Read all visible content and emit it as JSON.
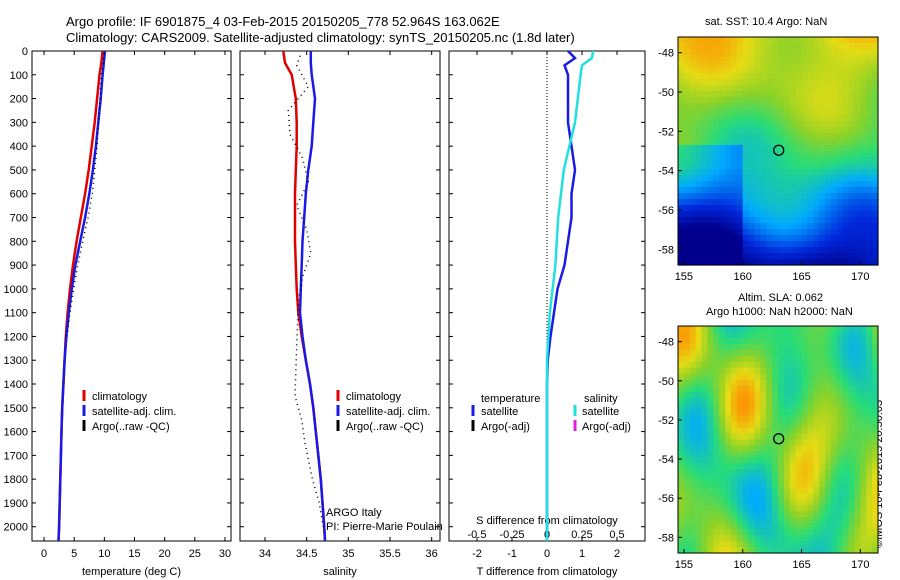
{
  "header": {
    "line1": "Argo profile: IF 6901875_4 03-Feb-2015 20150205_778 52.964S 163.062E",
    "line2": "Climatology: CARS2009. Satellite-adjusted climatology: synTS_20150205.nc (1.8d later)"
  },
  "map_sst": {
    "title": "sat. SST: 10.4 Argo: NaN"
  },
  "map_sla": {
    "title1": "Altim. SLA: 0.062",
    "title2": "Argo h1000: NaN h2000: NaN"
  },
  "stamp": "©IMOS 10-Feb-2015 20:50:03",
  "colors": {
    "climatology": "#e00000",
    "satellite": "#1a1ae6",
    "argo": "#000000",
    "sal_satellite": "#20e0e0",
    "sal_argo": "#e020e0"
  },
  "chart_data": [
    {
      "type": "line",
      "panel": "temperature",
      "xlabel": "temperature (deg C)",
      "xlim": [
        -2,
        31
      ],
      "xticks": [
        "0",
        "5",
        "10",
        "15",
        "20",
        "25",
        "30"
      ],
      "ylim": [
        2060,
        0
      ],
      "yticks": [
        "0",
        "100",
        "200",
        "300",
        "400",
        "500",
        "600",
        "700",
        "800",
        "900",
        "1000",
        "1100",
        "1200",
        "1300",
        "1400",
        "1500",
        "1600",
        "1700",
        "1800",
        "1900",
        "2000"
      ],
      "legend": {
        "items": [
          "climatology",
          "satellite-adj. clim.",
          "Argo(..raw -QC)"
        ]
      },
      "series": [
        {
          "name": "climatology",
          "style": "solid",
          "color": "#e00000",
          "depth": [
            0,
            50,
            100,
            200,
            300,
            400,
            500,
            600,
            700,
            800,
            900,
            1000,
            1100,
            1200,
            1300,
            1400,
            1500,
            1600,
            1700,
            1800,
            1900,
            2000,
            2060
          ],
          "values": [
            9.7,
            9.5,
            9.2,
            8.8,
            8.4,
            7.9,
            7.4,
            6.8,
            6.1,
            5.4,
            4.8,
            4.3,
            3.9,
            3.6,
            3.4,
            3.2,
            3.0,
            2.9,
            2.8,
            2.7,
            2.6,
            2.5,
            2.4
          ]
        },
        {
          "name": "satellite-adj. clim.",
          "style": "solid",
          "color": "#1a1ae6",
          "depth": [
            0,
            50,
            100,
            200,
            300,
            400,
            500,
            600,
            700,
            800,
            900,
            1000,
            1100,
            1200,
            1300,
            1400,
            1500,
            1600,
            1700,
            1800,
            1900,
            2000,
            2060
          ],
          "values": [
            10.1,
            9.9,
            9.7,
            9.4,
            9.0,
            8.6,
            8.1,
            7.5,
            6.8,
            6.0,
            5.2,
            4.6,
            4.1,
            3.7,
            3.4,
            3.2,
            3.0,
            2.9,
            2.8,
            2.7,
            2.6,
            2.5,
            2.4
          ]
        },
        {
          "name": "Argo(..raw -QC)",
          "style": "dotted",
          "color": "#000000",
          "depth": [
            10,
            50,
            100,
            200,
            300,
            400,
            500,
            600,
            700,
            800,
            900,
            1000,
            1100,
            1200
          ],
          "values": [
            10.0,
            9.8,
            9.5,
            9.3,
            9.0,
            8.8,
            8.4,
            8.0,
            7.3,
            6.4,
            5.6,
            4.9,
            4.3,
            3.8
          ]
        }
      ]
    },
    {
      "type": "line",
      "panel": "salinity",
      "xlabel": "salinity",
      "xlim": [
        33.7,
        36.1
      ],
      "xticks": [
        "34",
        "34.5",
        "35",
        "35.5",
        "36"
      ],
      "ylim": [
        2060,
        0
      ],
      "legend": {
        "items": [
          "climatology",
          "satellite-adj. clim.",
          "Argo(..raw -QC)"
        ]
      },
      "annotations": [
        "ARGO Italy",
        "PI: Pierre-Marie Poulain"
      ],
      "series": [
        {
          "name": "climatology",
          "style": "solid",
          "color": "#e00000",
          "depth": [
            0,
            50,
            100,
            200,
            300,
            400,
            500,
            600,
            700,
            800,
            900,
            1000,
            1100,
            1200,
            1300,
            1400,
            1500,
            1600,
            1700,
            1800,
            1900,
            2000,
            2060
          ],
          "values": [
            34.22,
            34.24,
            34.32,
            34.37,
            34.38,
            34.38,
            34.37,
            34.36,
            34.36,
            34.36,
            34.37,
            34.38,
            34.4,
            34.44,
            34.49,
            34.54,
            34.58,
            34.61,
            34.64,
            34.67,
            34.69,
            34.71,
            34.72
          ]
        },
        {
          "name": "satellite-adj. clim.",
          "style": "solid",
          "color": "#1a1ae6",
          "depth": [
            0,
            50,
            100,
            200,
            300,
            400,
            500,
            600,
            700,
            800,
            900,
            1000,
            1100,
            1200,
            1300,
            1400,
            1500,
            1600,
            1700,
            1800,
            1900,
            2000,
            2060
          ],
          "values": [
            34.55,
            34.55,
            34.56,
            34.6,
            34.58,
            34.56,
            34.52,
            34.49,
            34.47,
            34.45,
            34.44,
            34.43,
            34.42,
            34.45,
            34.49,
            34.54,
            34.58,
            34.61,
            34.64,
            34.67,
            34.69,
            34.71,
            34.72
          ]
        },
        {
          "name": "Argo(..raw -QC)",
          "style": "dotted",
          "color": "#000000",
          "depth": [
            20,
            60,
            150,
            250,
            350,
            450,
            550,
            650,
            750,
            850,
            950,
            1050,
            1450,
            1550,
            1650,
            1800,
            1900,
            2000
          ],
          "values": [
            34.42,
            34.38,
            34.52,
            34.28,
            34.3,
            34.45,
            34.52,
            34.38,
            34.5,
            34.55,
            34.45,
            34.4,
            34.36,
            34.44,
            34.48,
            34.57,
            34.65,
            34.7
          ]
        }
      ]
    },
    {
      "type": "line",
      "panel": "difference",
      "xlabel": "T difference from climatology",
      "xlabel_top": "S difference from climatology",
      "xlim": [
        -2.8,
        2.8
      ],
      "xticks": [
        "-2",
        "-1",
        "0",
        "1",
        "2"
      ],
      "xticks_top": [
        "-0.5",
        "-0.25",
        "0",
        "0.25",
        "0.5"
      ],
      "ylim": [
        2060,
        0
      ],
      "legend": {
        "temperature": [
          "satellite",
          "Argo(-adj)"
        ],
        "salinity": [
          "satellite",
          "Argo(-adj)"
        ],
        "headers": [
          "temperature",
          "salinity"
        ]
      },
      "series": [
        {
          "name": "temperature satellite",
          "style": "solid",
          "color": "#1a1ae6",
          "depth": [
            0,
            30,
            60,
            100,
            200,
            300,
            400,
            500,
            600,
            700,
            800,
            900,
            1000,
            1100,
            1200,
            1300,
            1400,
            1500,
            1600,
            1700,
            1800,
            1900,
            2000,
            2060
          ],
          "values": [
            0.6,
            0.8,
            0.5,
            0.6,
            0.6,
            0.6,
            0.7,
            0.8,
            0.7,
            0.7,
            0.6,
            0.5,
            0.3,
            0.2,
            0.1,
            0.02,
            0,
            0,
            0,
            0,
            0,
            0,
            0,
            0
          ]
        },
        {
          "name": "salinity satellite",
          "style": "solid",
          "color": "#20e0e0",
          "depth": [
            0,
            30,
            60,
            100,
            200,
            300,
            400,
            500,
            600,
            700,
            800,
            900,
            1000,
            1100,
            1200,
            1300,
            1400,
            1500,
            1600,
            1700,
            1800,
            1900,
            2000,
            2060
          ],
          "values": [
            0.33,
            0.32,
            0.25,
            0.24,
            0.22,
            0.2,
            0.16,
            0.12,
            0.1,
            0.08,
            0.07,
            0.06,
            0.04,
            0.02,
            0.01,
            0,
            0,
            0,
            0,
            0,
            0,
            0,
            0,
            0
          ]
        }
      ]
    }
  ],
  "maps": [
    {
      "name": "sst",
      "xticks": [
        "155",
        "160",
        "165",
        "170"
      ],
      "yticks": [
        "-48",
        "-50",
        "-52",
        "-54",
        "-56",
        "-58"
      ],
      "lon_range": [
        154.5,
        171.5
      ],
      "lat_range": [
        -47.2,
        -58.8
      ],
      "marker": {
        "lon": 163.06,
        "lat": -52.96
      }
    },
    {
      "name": "sla",
      "xticks": [
        "155",
        "160",
        "165",
        "170"
      ],
      "yticks": [
        "-48",
        "-50",
        "-52",
        "-54",
        "-56",
        "-58"
      ],
      "lon_range": [
        154.5,
        171.5
      ],
      "lat_range": [
        -47.2,
        -58.8
      ],
      "marker": {
        "lon": 163.06,
        "lat": -52.96
      }
    }
  ]
}
